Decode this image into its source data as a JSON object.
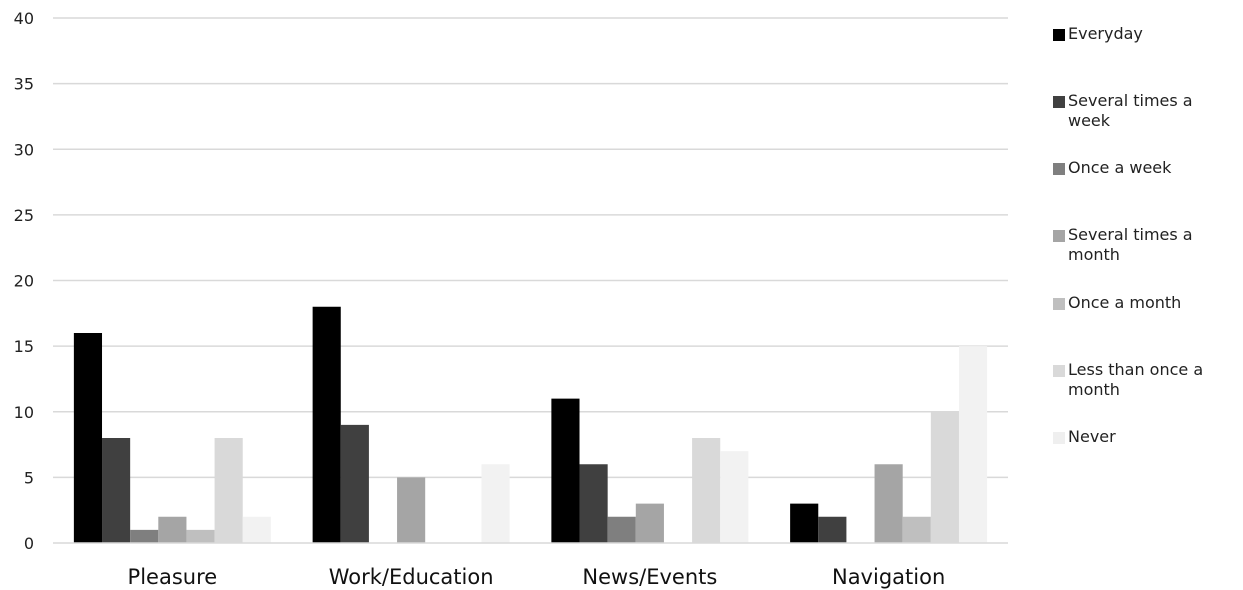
{
  "chart_data": {
    "type": "bar",
    "title": "",
    "xlabel": "",
    "ylabel": "",
    "ylim": [
      0,
      40
    ],
    "yticks": [
      0,
      5,
      10,
      15,
      20,
      25,
      30,
      35,
      40
    ],
    "grid": true,
    "legend_position": "right",
    "categories": [
      "Pleasure",
      "Work/Education",
      "News/Events",
      "Navigation"
    ],
    "series": [
      {
        "name": "Everyday",
        "color": "#000000",
        "values": [
          16,
          18,
          11,
          3
        ]
      },
      {
        "name": "Several times a week",
        "color": "#404040",
        "values": [
          8,
          9,
          6,
          2
        ]
      },
      {
        "name": "Once a week",
        "color": "#7f7f7f",
        "values": [
          1,
          0,
          2,
          0
        ]
      },
      {
        "name": "Several times a month",
        "color": "#a5a5a5",
        "values": [
          2,
          5,
          3,
          6
        ]
      },
      {
        "name": "Once a month",
        "color": "#bfbfbf",
        "values": [
          1,
          0,
          0,
          2
        ]
      },
      {
        "name": "Less than once a month",
        "color": "#d9d9d9",
        "values": [
          8,
          0,
          8,
          10
        ]
      },
      {
        "name": "Never",
        "color": "#f2f2f2",
        "values": [
          2,
          6,
          7,
          15
        ]
      }
    ]
  }
}
